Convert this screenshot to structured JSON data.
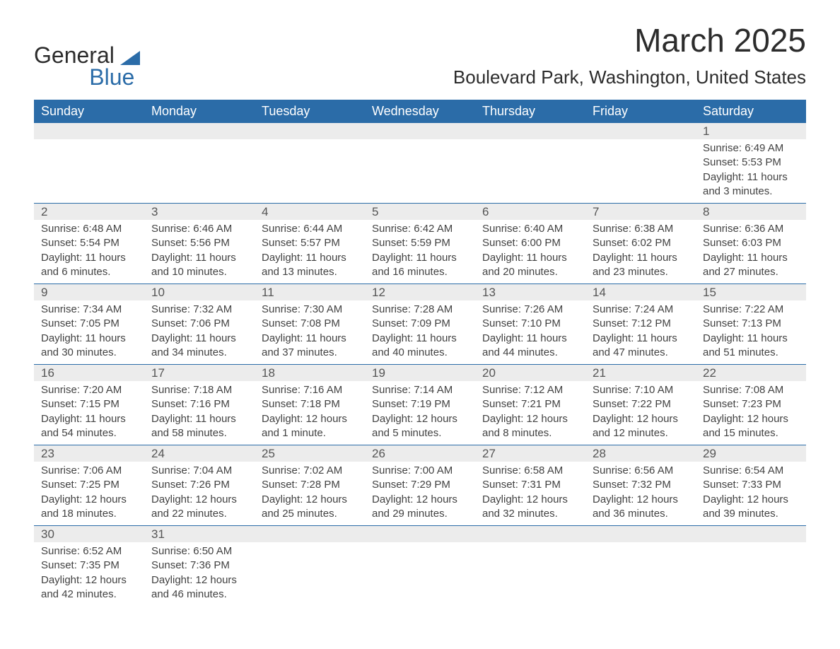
{
  "header": {
    "logo_main": "General",
    "logo_sub": "Blue",
    "logo_triangle_color": "#2b6ca8",
    "month_title": "March 2025",
    "location": "Boulevard Park, Washington, United States"
  },
  "calendar": {
    "header_bg": "#2b6ca8",
    "header_text_color": "#ffffff",
    "daynum_bg": "#ececec",
    "divider_color": "#2b6ca8",
    "text_color": "#424242",
    "day_names": [
      "Sunday",
      "Monday",
      "Tuesday",
      "Wednesday",
      "Thursday",
      "Friday",
      "Saturday"
    ],
    "weeks": [
      [
        null,
        null,
        null,
        null,
        null,
        null,
        {
          "num": "1",
          "sunrise": "Sunrise: 6:49 AM",
          "sunset": "Sunset: 5:53 PM",
          "daylight1": "Daylight: 11 hours",
          "daylight2": "and 3 minutes."
        }
      ],
      [
        {
          "num": "2",
          "sunrise": "Sunrise: 6:48 AM",
          "sunset": "Sunset: 5:54 PM",
          "daylight1": "Daylight: 11 hours",
          "daylight2": "and 6 minutes."
        },
        {
          "num": "3",
          "sunrise": "Sunrise: 6:46 AM",
          "sunset": "Sunset: 5:56 PM",
          "daylight1": "Daylight: 11 hours",
          "daylight2": "and 10 minutes."
        },
        {
          "num": "4",
          "sunrise": "Sunrise: 6:44 AM",
          "sunset": "Sunset: 5:57 PM",
          "daylight1": "Daylight: 11 hours",
          "daylight2": "and 13 minutes."
        },
        {
          "num": "5",
          "sunrise": "Sunrise: 6:42 AM",
          "sunset": "Sunset: 5:59 PM",
          "daylight1": "Daylight: 11 hours",
          "daylight2": "and 16 minutes."
        },
        {
          "num": "6",
          "sunrise": "Sunrise: 6:40 AM",
          "sunset": "Sunset: 6:00 PM",
          "daylight1": "Daylight: 11 hours",
          "daylight2": "and 20 minutes."
        },
        {
          "num": "7",
          "sunrise": "Sunrise: 6:38 AM",
          "sunset": "Sunset: 6:02 PM",
          "daylight1": "Daylight: 11 hours",
          "daylight2": "and 23 minutes."
        },
        {
          "num": "8",
          "sunrise": "Sunrise: 6:36 AM",
          "sunset": "Sunset: 6:03 PM",
          "daylight1": "Daylight: 11 hours",
          "daylight2": "and 27 minutes."
        }
      ],
      [
        {
          "num": "9",
          "sunrise": "Sunrise: 7:34 AM",
          "sunset": "Sunset: 7:05 PM",
          "daylight1": "Daylight: 11 hours",
          "daylight2": "and 30 minutes."
        },
        {
          "num": "10",
          "sunrise": "Sunrise: 7:32 AM",
          "sunset": "Sunset: 7:06 PM",
          "daylight1": "Daylight: 11 hours",
          "daylight2": "and 34 minutes."
        },
        {
          "num": "11",
          "sunrise": "Sunrise: 7:30 AM",
          "sunset": "Sunset: 7:08 PM",
          "daylight1": "Daylight: 11 hours",
          "daylight2": "and 37 minutes."
        },
        {
          "num": "12",
          "sunrise": "Sunrise: 7:28 AM",
          "sunset": "Sunset: 7:09 PM",
          "daylight1": "Daylight: 11 hours",
          "daylight2": "and 40 minutes."
        },
        {
          "num": "13",
          "sunrise": "Sunrise: 7:26 AM",
          "sunset": "Sunset: 7:10 PM",
          "daylight1": "Daylight: 11 hours",
          "daylight2": "and 44 minutes."
        },
        {
          "num": "14",
          "sunrise": "Sunrise: 7:24 AM",
          "sunset": "Sunset: 7:12 PM",
          "daylight1": "Daylight: 11 hours",
          "daylight2": "and 47 minutes."
        },
        {
          "num": "15",
          "sunrise": "Sunrise: 7:22 AM",
          "sunset": "Sunset: 7:13 PM",
          "daylight1": "Daylight: 11 hours",
          "daylight2": "and 51 minutes."
        }
      ],
      [
        {
          "num": "16",
          "sunrise": "Sunrise: 7:20 AM",
          "sunset": "Sunset: 7:15 PM",
          "daylight1": "Daylight: 11 hours",
          "daylight2": "and 54 minutes."
        },
        {
          "num": "17",
          "sunrise": "Sunrise: 7:18 AM",
          "sunset": "Sunset: 7:16 PM",
          "daylight1": "Daylight: 11 hours",
          "daylight2": "and 58 minutes."
        },
        {
          "num": "18",
          "sunrise": "Sunrise: 7:16 AM",
          "sunset": "Sunset: 7:18 PM",
          "daylight1": "Daylight: 12 hours",
          "daylight2": "and 1 minute."
        },
        {
          "num": "19",
          "sunrise": "Sunrise: 7:14 AM",
          "sunset": "Sunset: 7:19 PM",
          "daylight1": "Daylight: 12 hours",
          "daylight2": "and 5 minutes."
        },
        {
          "num": "20",
          "sunrise": "Sunrise: 7:12 AM",
          "sunset": "Sunset: 7:21 PM",
          "daylight1": "Daylight: 12 hours",
          "daylight2": "and 8 minutes."
        },
        {
          "num": "21",
          "sunrise": "Sunrise: 7:10 AM",
          "sunset": "Sunset: 7:22 PM",
          "daylight1": "Daylight: 12 hours",
          "daylight2": "and 12 minutes."
        },
        {
          "num": "22",
          "sunrise": "Sunrise: 7:08 AM",
          "sunset": "Sunset: 7:23 PM",
          "daylight1": "Daylight: 12 hours",
          "daylight2": "and 15 minutes."
        }
      ],
      [
        {
          "num": "23",
          "sunrise": "Sunrise: 7:06 AM",
          "sunset": "Sunset: 7:25 PM",
          "daylight1": "Daylight: 12 hours",
          "daylight2": "and 18 minutes."
        },
        {
          "num": "24",
          "sunrise": "Sunrise: 7:04 AM",
          "sunset": "Sunset: 7:26 PM",
          "daylight1": "Daylight: 12 hours",
          "daylight2": "and 22 minutes."
        },
        {
          "num": "25",
          "sunrise": "Sunrise: 7:02 AM",
          "sunset": "Sunset: 7:28 PM",
          "daylight1": "Daylight: 12 hours",
          "daylight2": "and 25 minutes."
        },
        {
          "num": "26",
          "sunrise": "Sunrise: 7:00 AM",
          "sunset": "Sunset: 7:29 PM",
          "daylight1": "Daylight: 12 hours",
          "daylight2": "and 29 minutes."
        },
        {
          "num": "27",
          "sunrise": "Sunrise: 6:58 AM",
          "sunset": "Sunset: 7:31 PM",
          "daylight1": "Daylight: 12 hours",
          "daylight2": "and 32 minutes."
        },
        {
          "num": "28",
          "sunrise": "Sunrise: 6:56 AM",
          "sunset": "Sunset: 7:32 PM",
          "daylight1": "Daylight: 12 hours",
          "daylight2": "and 36 minutes."
        },
        {
          "num": "29",
          "sunrise": "Sunrise: 6:54 AM",
          "sunset": "Sunset: 7:33 PM",
          "daylight1": "Daylight: 12 hours",
          "daylight2": "and 39 minutes."
        }
      ],
      [
        {
          "num": "30",
          "sunrise": "Sunrise: 6:52 AM",
          "sunset": "Sunset: 7:35 PM",
          "daylight1": "Daylight: 12 hours",
          "daylight2": "and 42 minutes."
        },
        {
          "num": "31",
          "sunrise": "Sunrise: 6:50 AM",
          "sunset": "Sunset: 7:36 PM",
          "daylight1": "Daylight: 12 hours",
          "daylight2": "and 46 minutes."
        },
        null,
        null,
        null,
        null,
        null
      ]
    ]
  }
}
